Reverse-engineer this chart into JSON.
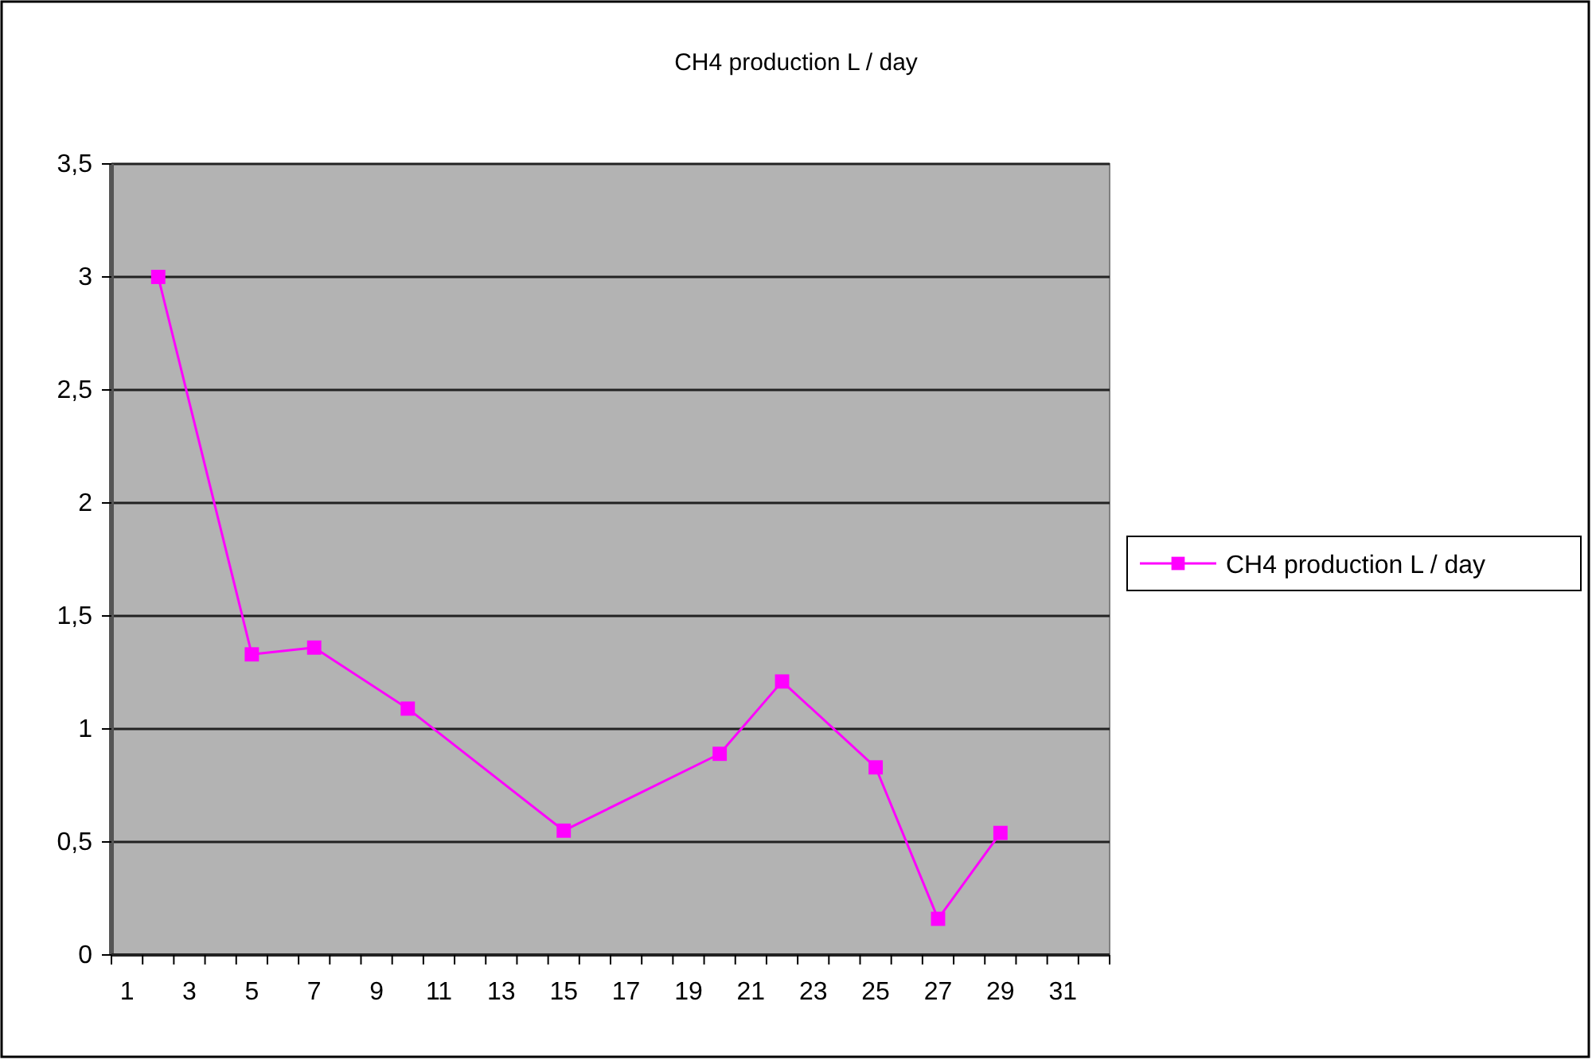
{
  "chart_data": {
    "type": "line",
    "title": "CH4 production L / day",
    "x": [
      2,
      5,
      7,
      10,
      15,
      20,
      22,
      25,
      27,
      29
    ],
    "series": [
      {
        "name": "CH4 production L / day",
        "color": "#ff00ff",
        "values": [
          3.0,
          1.33,
          1.36,
          1.09,
          0.55,
          0.89,
          1.21,
          0.83,
          0.16,
          0.54
        ]
      }
    ],
    "xlim": [
      0.5,
      32.5
    ],
    "xticks": [
      {
        "value": 0.5,
        "label": null
      },
      1,
      {
        "value": 1.5,
        "label": null
      },
      {
        "value": 2.5,
        "label": null
      },
      3,
      {
        "value": 3.5,
        "label": null
      },
      {
        "value": 4.5,
        "label": null
      },
      5,
      {
        "value": 5.5,
        "label": null
      },
      {
        "value": 6.5,
        "label": null
      },
      7,
      {
        "value": 7.5,
        "label": null
      },
      {
        "value": 8.5,
        "label": null
      },
      9,
      {
        "value": 9.5,
        "label": null
      },
      {
        "value": 10.5,
        "label": null
      },
      11,
      {
        "value": 11.5,
        "label": null
      },
      {
        "value": 12.5,
        "label": null
      },
      13,
      {
        "value": 13.5,
        "label": null
      },
      {
        "value": 14.5,
        "label": null
      },
      15,
      {
        "value": 15.5,
        "label": null
      },
      {
        "value": 16.5,
        "label": null
      },
      17,
      {
        "value": 17.5,
        "label": null
      },
      {
        "value": 18.5,
        "label": null
      },
      19,
      {
        "value": 19.5,
        "label": null
      },
      {
        "value": 20.5,
        "label": null
      },
      21,
      {
        "value": 21.5,
        "label": null
      },
      {
        "value": 22.5,
        "label": null
      },
      23,
      {
        "value": 23.5,
        "label": null
      },
      {
        "value": 24.5,
        "label": null
      },
      25,
      {
        "value": 25.5,
        "label": null
      },
      {
        "value": 26.5,
        "label": null
      },
      27,
      {
        "value": 27.5,
        "label": null
      },
      {
        "value": 28.5,
        "label": null
      },
      29,
      {
        "value": 29.5,
        "label": null
      },
      {
        "value": 30.5,
        "label": null
      },
      31,
      {
        "value": 31.5,
        "label": null
      },
      {
        "value": 32.5,
        "label": null
      }
    ],
    "ylim": [
      0,
      3.5
    ],
    "yticks": [
      0,
      {
        "value": 0.5,
        "label": "0,5"
      },
      1,
      {
        "value": 1.5,
        "label": "1,5"
      },
      2,
      {
        "value": 2.5,
        "label": "2,5"
      },
      3,
      {
        "value": 3.5,
        "label": "3,5"
      }
    ],
    "grid": "y",
    "legend": "right",
    "marker": "square",
    "line_style": "solid"
  }
}
